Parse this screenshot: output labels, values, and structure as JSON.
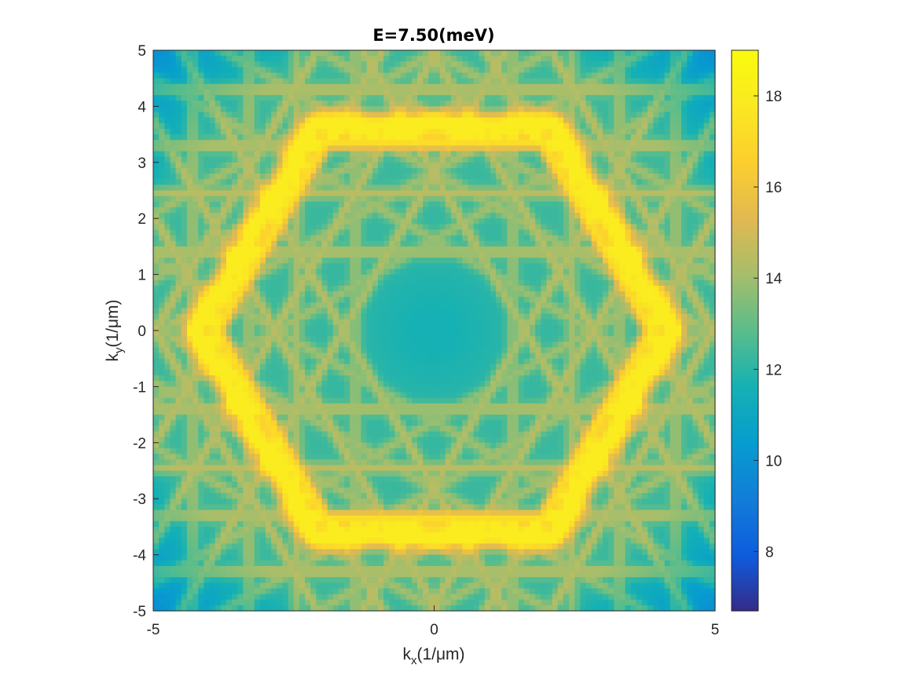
{
  "chart_data": {
    "type": "heatmap",
    "title": "E=7.50(meV)",
    "xlabel": {
      "base": "k",
      "sub": "x",
      "rest": "(1/μm)"
    },
    "ylabel": {
      "base": "k",
      "sub": "y",
      "rest": "(1/μm)"
    },
    "xlim": [
      -5,
      5
    ],
    "ylim": [
      -5,
      5
    ],
    "x_ticks": [
      -5,
      0,
      5
    ],
    "x_tick_labels": [
      "-5",
      "0",
      "5"
    ],
    "y_ticks": [
      -5,
      -4,
      -3,
      -2,
      -1,
      0,
      1,
      2,
      3,
      4,
      5
    ],
    "y_tick_labels": [
      "-5",
      "-4",
      "-3",
      "-2",
      "-1",
      "0",
      "1",
      "2",
      "3",
      "4",
      "5"
    ],
    "grid_resolution": 100,
    "colormap": "parula",
    "colorbar": {
      "limits": [
        6.7,
        19
      ],
      "ticks": [
        8,
        10,
        12,
        14,
        16,
        18
      ],
      "tick_labels": [
        "8",
        "10",
        "12",
        "14",
        "16",
        "18"
      ]
    },
    "features": {
      "background_value": 12.3,
      "center_value": 12.0,
      "corner_value": 9.5,
      "outer_ring": {
        "shape": "hexagon",
        "vertex_radius": 4.25,
        "vertex_direction": "kx",
        "peak_value": 18.0
      },
      "inner_ring": {
        "shape": "hexagon",
        "vertex_radius": 3.9,
        "vertex_direction": "kx",
        "peak_value": 17.0
      },
      "line_pattern_value": 14.5,
      "line_offsets": [
        1.4,
        2.45,
        3.3,
        4.3
      ]
    }
  }
}
